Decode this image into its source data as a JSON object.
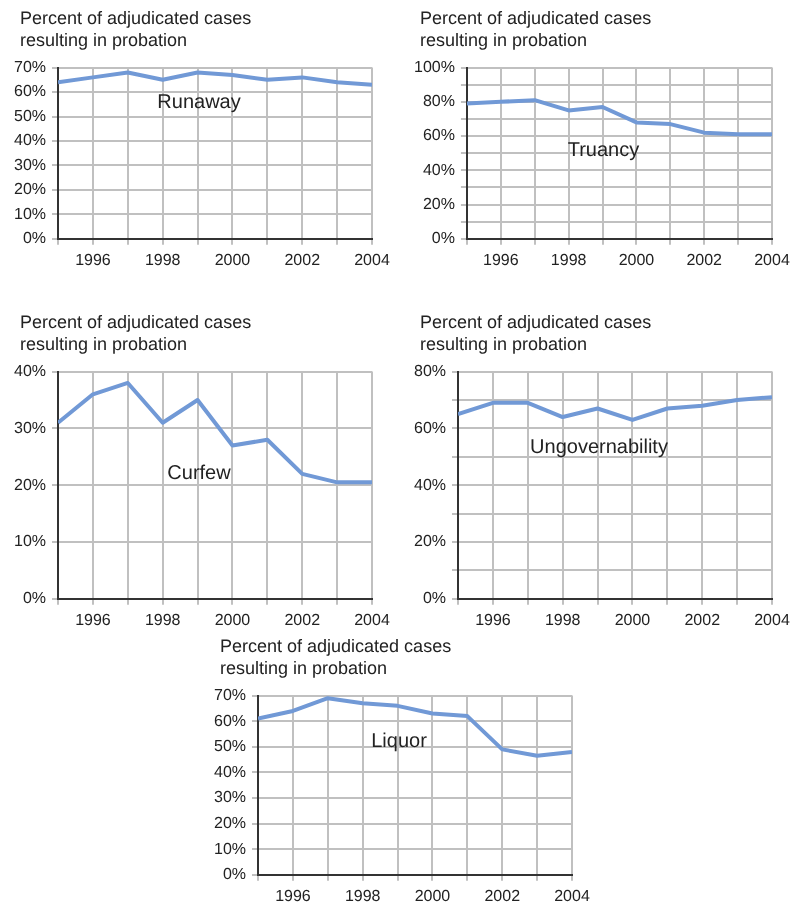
{
  "chart_data": [
    {
      "type": "line",
      "title": "Percent of adjudicated cases resulting in probation",
      "x": [
        1995,
        1996,
        1997,
        1998,
        1999,
        2000,
        2001,
        2002,
        2003,
        2004
      ],
      "xlim": [
        1995,
        2004
      ],
      "xticks": [
        {
          "value": 1995,
          "label": null
        },
        1996,
        {
          "value": 1997,
          "label": null
        },
        1998,
        {
          "value": 1999,
          "label": null
        },
        2000,
        {
          "value": 2001,
          "label": null
        },
        2002,
        {
          "value": 2003,
          "label": null
        },
        2004
      ],
      "ylim": [
        0,
        70
      ],
      "yticks": [
        {
          "value": 0,
          "label": "0%"
        },
        {
          "value": 10,
          "label": "10%"
        },
        {
          "value": 20,
          "label": "20%"
        },
        {
          "value": 30,
          "label": "30%"
        },
        {
          "value": 40,
          "label": "40%"
        },
        {
          "value": 50,
          "label": "50%"
        },
        {
          "value": 60,
          "label": "60%"
        },
        {
          "value": 70,
          "label": "70%"
        }
      ],
      "grid": true,
      "marker": "none",
      "series": [
        {
          "name": "Runaway",
          "color": "#7199d6",
          "values": [
            64,
            66,
            68,
            65,
            68,
            67,
            65,
            66,
            64,
            63
          ]
        }
      ]
    },
    {
      "type": "line",
      "title": "Percent of adjudicated cases resulting in probation",
      "x": [
        1995,
        1996,
        1997,
        1998,
        1999,
        2000,
        2001,
        2002,
        2003,
        2004
      ],
      "xlim": [
        1995,
        2004
      ],
      "xticks": [
        {
          "value": 1995,
          "label": null
        },
        1996,
        {
          "value": 1997,
          "label": null
        },
        1998,
        {
          "value": 1999,
          "label": null
        },
        2000,
        {
          "value": 2001,
          "label": null
        },
        2002,
        {
          "value": 2003,
          "label": null
        },
        2004
      ],
      "ylim": [
        0,
        100
      ],
      "yticks": [
        {
          "value": 0,
          "label": "0%"
        },
        {
          "value": 10,
          "label": null
        },
        {
          "value": 20,
          "label": "20%"
        },
        {
          "value": 30,
          "label": null
        },
        {
          "value": 40,
          "label": "40%"
        },
        {
          "value": 50,
          "label": null
        },
        {
          "value": 60,
          "label": "60%"
        },
        {
          "value": 70,
          "label": null
        },
        {
          "value": 80,
          "label": "80%"
        },
        {
          "value": 90,
          "label": null
        },
        {
          "value": 100,
          "label": "100%"
        }
      ],
      "grid": true,
      "marker": "none",
      "series": [
        {
          "name": "Truancy",
          "color": "#7199d6",
          "values": [
            79,
            80,
            81,
            75,
            77,
            68,
            67,
            62,
            61,
            61
          ]
        }
      ]
    },
    {
      "type": "line",
      "title": "Percent of adjudicated cases resulting in probation",
      "x": [
        1995,
        1996,
        1997,
        1998,
        1999,
        2000,
        2001,
        2002,
        2003,
        2004
      ],
      "xlim": [
        1995,
        2004
      ],
      "xticks": [
        {
          "value": 1995,
          "label": null
        },
        1996,
        {
          "value": 1997,
          "label": null
        },
        1998,
        {
          "value": 1999,
          "label": null
        },
        2000,
        {
          "value": 2001,
          "label": null
        },
        2002,
        {
          "value": 2003,
          "label": null
        },
        2004
      ],
      "ylim": [
        0,
        40
      ],
      "yticks": [
        {
          "value": 0,
          "label": "0%"
        },
        {
          "value": 10,
          "label": "10%"
        },
        {
          "value": 20,
          "label": "20%"
        },
        {
          "value": 30,
          "label": "30%"
        },
        {
          "value": 40,
          "label": "40%"
        }
      ],
      "grid": true,
      "marker": "none",
      "series": [
        {
          "name": "Curfew",
          "color": "#7199d6",
          "values": [
            31,
            36,
            38,
            31,
            35,
            27,
            28,
            22,
            20.5,
            20.5
          ]
        }
      ]
    },
    {
      "type": "line",
      "title": "Percent of adjudicated cases resulting in probation",
      "x": [
        1995,
        1996,
        1997,
        1998,
        1999,
        2000,
        2001,
        2002,
        2003,
        2004
      ],
      "xlim": [
        1995,
        2004
      ],
      "xticks": [
        {
          "value": 1995,
          "label": null
        },
        1996,
        {
          "value": 1997,
          "label": null
        },
        1998,
        {
          "value": 1999,
          "label": null
        },
        2000,
        {
          "value": 2001,
          "label": null
        },
        2002,
        {
          "value": 2003,
          "label": null
        },
        2004
      ],
      "ylim": [
        0,
        80
      ],
      "yticks": [
        {
          "value": 0,
          "label": "0%"
        },
        {
          "value": 10,
          "label": null
        },
        {
          "value": 20,
          "label": "20%"
        },
        {
          "value": 30,
          "label": null
        },
        {
          "value": 40,
          "label": "40%"
        },
        {
          "value": 50,
          "label": null
        },
        {
          "value": 60,
          "label": "60%"
        },
        {
          "value": 70,
          "label": null
        },
        {
          "value": 80,
          "label": "80%"
        }
      ],
      "grid": true,
      "marker": "none",
      "series": [
        {
          "name": "Ungovernability",
          "color": "#7199d6",
          "values": [
            65,
            69,
            69,
            64,
            67,
            63,
            67,
            68,
            70,
            71
          ]
        }
      ]
    },
    {
      "type": "line",
      "title": "Percent of adjudicated cases resulting in probation",
      "x": [
        1995,
        1996,
        1997,
        1998,
        1999,
        2000,
        2001,
        2002,
        2003,
        2004
      ],
      "xlim": [
        1995,
        2004
      ],
      "xticks": [
        {
          "value": 1995,
          "label": null
        },
        1996,
        {
          "value": 1997,
          "label": null
        },
        1998,
        {
          "value": 1999,
          "label": null
        },
        2000,
        {
          "value": 2001,
          "label": null
        },
        2002,
        {
          "value": 2003,
          "label": null
        },
        2004
      ],
      "ylim": [
        0,
        70
      ],
      "yticks": [
        {
          "value": 0,
          "label": "0%"
        },
        {
          "value": 10,
          "label": "10%"
        },
        {
          "value": 20,
          "label": "20%"
        },
        {
          "value": 30,
          "label": "30%"
        },
        {
          "value": 40,
          "label": "40%"
        },
        {
          "value": 50,
          "label": "50%"
        },
        {
          "value": 60,
          "label": "60%"
        },
        {
          "value": 70,
          "label": "70%"
        }
      ],
      "grid": true,
      "marker": "none",
      "series": [
        {
          "name": "Liquor",
          "color": "#7199d6",
          "values": [
            61,
            64,
            69,
            67,
            66,
            63,
            62,
            49,
            46.5,
            48
          ]
        }
      ]
    }
  ]
}
